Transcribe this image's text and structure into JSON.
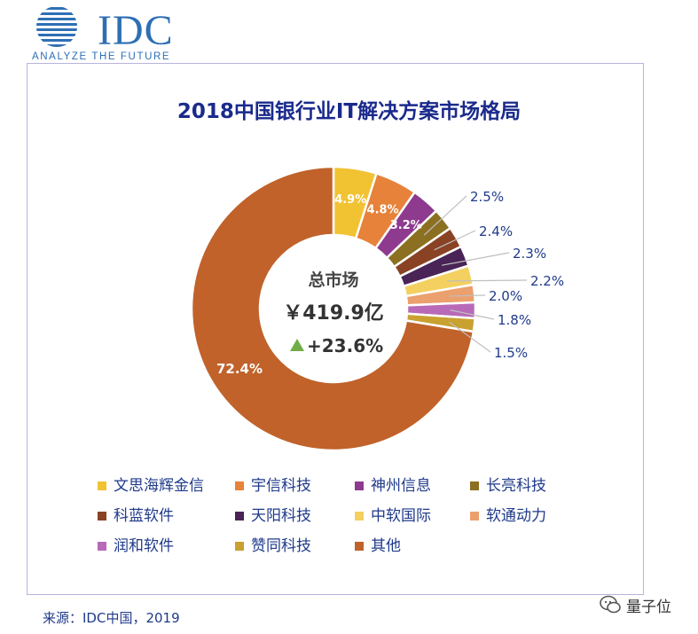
{
  "header": {
    "logo_text": "IDC",
    "tagline": "ANALYZE THE FUTURE"
  },
  "colors": {
    "title": "#1a2a8c",
    "text": "#1f3a8a",
    "card_border": "#b8b4dc"
  },
  "chart_data": {
    "type": "pie",
    "style": "donut",
    "title": "2018中国银行业IT解决方案市场格局",
    "center": {
      "label": "总市场",
      "value": "￥419.9亿",
      "growth": "+23.6%",
      "growth_icon": "up-triangle-icon"
    },
    "series": [
      {
        "name": "文思海辉金信",
        "value": 4.9,
        "label": "4.9%",
        "color": "#f1c232"
      },
      {
        "name": "宇信科技",
        "value": 4.8,
        "label": "4.8%",
        "color": "#e6823a"
      },
      {
        "name": "神州信息",
        "value": 3.2,
        "label": "3.2%",
        "color": "#8e3a8e"
      },
      {
        "name": "长亮科技",
        "value": 2.5,
        "label": "2.5%",
        "color": "#8c7022"
      },
      {
        "name": "科蓝软件",
        "value": 2.4,
        "label": "2.4%",
        "color": "#8a4224"
      },
      {
        "name": "天阳科技",
        "value": 2.3,
        "label": "2.3%",
        "color": "#4a2456"
      },
      {
        "name": "中软国际",
        "value": 2.2,
        "label": "2.2%",
        "color": "#f3d060"
      },
      {
        "name": "软通动力",
        "value": 2.0,
        "label": "2.0%",
        "color": "#eba06e"
      },
      {
        "name": "润和软件",
        "value": 1.8,
        "label": "1.8%",
        "color": "#b86ab8"
      },
      {
        "name": "赞同科技",
        "value": 1.5,
        "label": "1.5%",
        "color": "#c9a130"
      },
      {
        "name": "其他",
        "value": 72.4,
        "label": "72.4%",
        "color": "#c0622a"
      }
    ]
  },
  "source": "来源：IDC中国，2019",
  "watermark": "量子位"
}
